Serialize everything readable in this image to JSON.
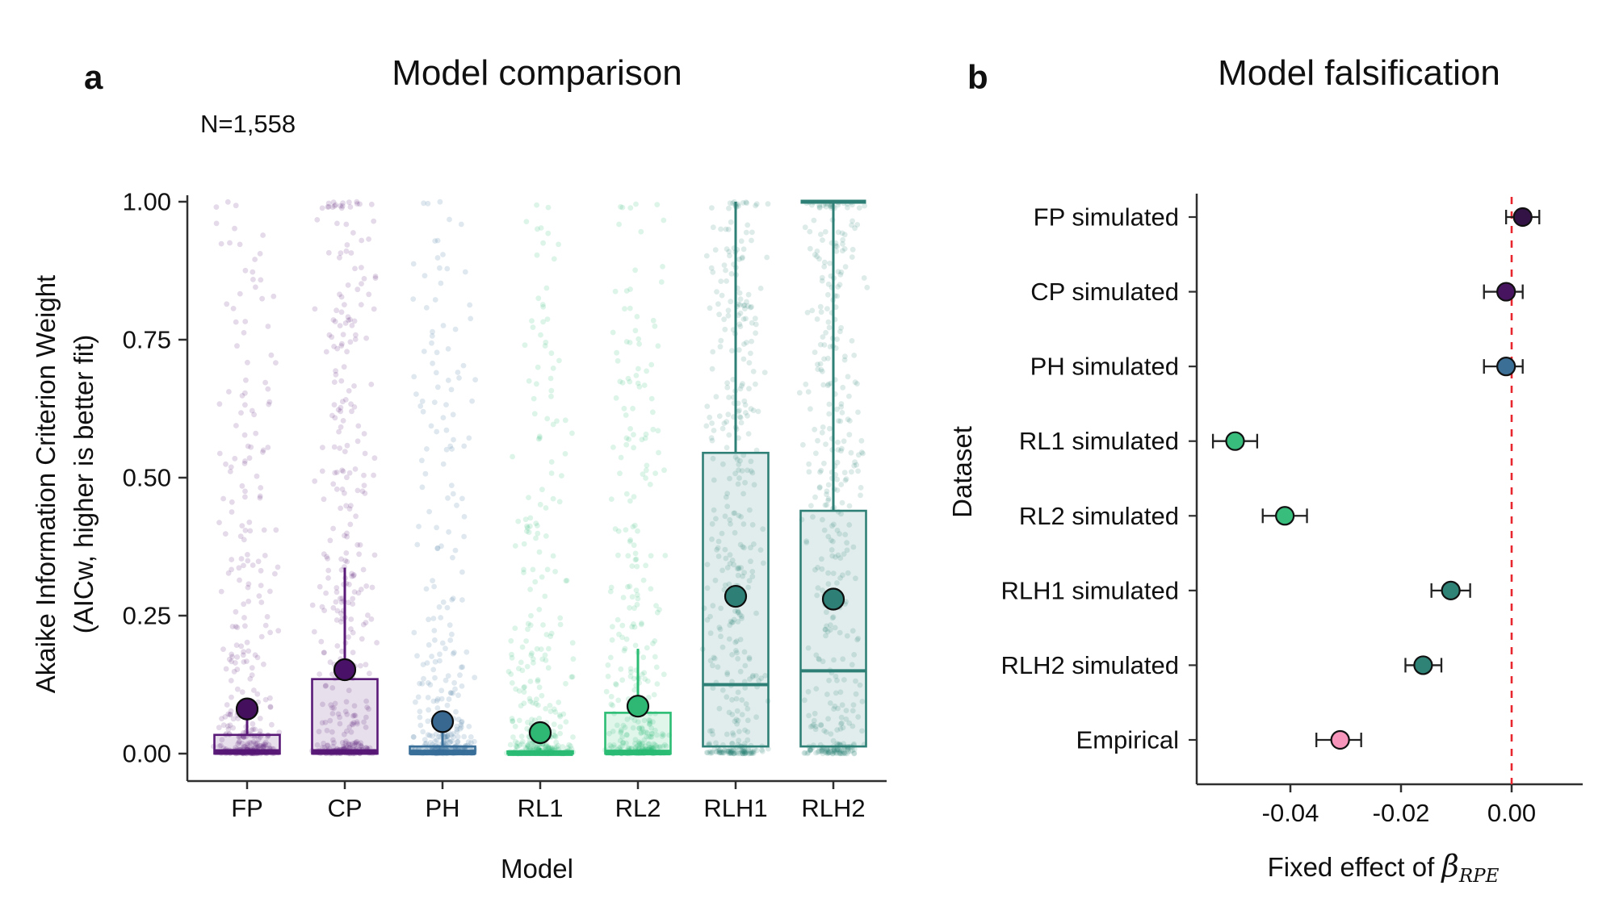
{
  "figure": {
    "background": "#ffffff",
    "panel_a": {
      "panel_label": "a",
      "title": "Model comparison",
      "annotation": "N=1,558",
      "x_axis_label": "Model",
      "y_axis_label_line1": "Akaike Information Criterion Weight",
      "y_axis_label_line2": "(AICw, higher is better fit)"
    },
    "panel_b": {
      "panel_label": "b",
      "title": "Model falsification",
      "y_axis_label": "Dataset",
      "x_label_prefix": "Fixed effect of ",
      "x_label_symbol": "β",
      "x_label_subscript": "RPE"
    }
  },
  "chart_data": [
    {
      "id": "model_comparison",
      "type": "boxplot_jitter",
      "title": "Model comparison",
      "annotation": "N=1,558",
      "xlabel": "Model",
      "ylabel": "Akaike Information Criterion Weight (AICw, higher is better fit)",
      "ylim": [
        0,
        1
      ],
      "grid": false,
      "y_ticks": [
        {
          "v": 0.0,
          "label": "0.00"
        },
        {
          "v": 0.25,
          "label": "0.25"
        },
        {
          "v": 0.5,
          "label": "0.50"
        },
        {
          "v": 0.75,
          "label": "0.75"
        },
        {
          "v": 1.0,
          "label": "1.00"
        }
      ],
      "categories": [
        "FP",
        "CP",
        "PH",
        "RL1",
        "RL2",
        "RLH1",
        "RLH2"
      ],
      "series": [
        {
          "model": "FP",
          "color": "#5a1a78",
          "dot_color": "#44105e",
          "q1": 0.0,
          "median": 0.003,
          "q3": 0.034,
          "whisker_high": 0.088,
          "mean": 0.081,
          "top_cap": false,
          "jitter": {
            "n": 360,
            "p_bottom": 0.42,
            "p_top": 0.008,
            "decay": 2.3
          }
        },
        {
          "model": "CP",
          "color": "#5a1a78",
          "dot_color": "#4a1168",
          "q1": 0.0,
          "median": 0.003,
          "q3": 0.135,
          "whisker_high": 0.337,
          "mean": 0.152,
          "top_cap": false,
          "jitter": {
            "n": 380,
            "p_bottom": 0.3,
            "p_top": 0.045,
            "decay": 1.5
          }
        },
        {
          "model": "PH",
          "color": "#3a6f99",
          "dot_color": "#38688f",
          "q1": 0.0,
          "median": 0.002,
          "q3": 0.013,
          "whisker_high": 0.04,
          "mean": 0.058,
          "top_cap": false,
          "jitter": {
            "n": 360,
            "p_bottom": 0.45,
            "p_top": 0.008,
            "decay": 2.2
          }
        },
        {
          "model": "RL1",
          "color": "#2cbd74",
          "dot_color": "#2eb873",
          "q1": 0.0,
          "median": 0.001,
          "q3": 0.004,
          "whisker_high": 0.01,
          "mean": 0.038,
          "top_cap": false,
          "jitter": {
            "n": 360,
            "p_bottom": 0.5,
            "p_top": 0.004,
            "decay": 2.4
          }
        },
        {
          "model": "RL2",
          "color": "#2cbd74",
          "dot_color": "#2eb873",
          "q1": 0.0,
          "median": 0.002,
          "q3": 0.074,
          "whisker_high": 0.19,
          "mean": 0.086,
          "top_cap": false,
          "jitter": {
            "n": 360,
            "p_bottom": 0.4,
            "p_top": 0.01,
            "decay": 1.9
          }
        },
        {
          "model": "RLH1",
          "color": "#2e8076",
          "dot_color": "#2e8076",
          "q1": 0.013,
          "median": 0.125,
          "q3": 0.545,
          "whisker_high": 1.0,
          "mean": 0.285,
          "top_cap": false,
          "jitter": {
            "n": 420,
            "p_bottom": 0.24,
            "p_top": 0.04,
            "decay": 1.05
          }
        },
        {
          "model": "RLH2",
          "color": "#2e8076",
          "dot_color": "#2e8076",
          "q1": 0.013,
          "median": 0.15,
          "q3": 0.44,
          "whisker_high": 1.0,
          "mean": 0.28,
          "top_cap": true,
          "jitter": {
            "n": 420,
            "p_bottom": 0.24,
            "p_top": 0.06,
            "decay": 1.05
          }
        }
      ]
    },
    {
      "id": "model_falsification",
      "type": "forest",
      "title": "Model falsification",
      "xlabel": "Fixed effect of β_RPE",
      "ylabel": "Dataset",
      "xlim": [
        -0.055,
        0.013
      ],
      "x_ticks": [
        {
          "v": -0.04,
          "label": "-0.04"
        },
        {
          "v": -0.02,
          "label": "-0.02"
        },
        {
          "v": 0.0,
          "label": "0.00"
        }
      ],
      "reference_line": {
        "x": 0,
        "color": "#e8262d",
        "style": "dashed"
      },
      "rows": [
        {
          "label": "FP simulated",
          "value": 0.002,
          "ci_low": -0.001,
          "ci_high": 0.005,
          "color": "#331245"
        },
        {
          "label": "CP simulated",
          "value": -0.001,
          "ci_low": -0.005,
          "ci_high": 0.002,
          "color": "#47145f"
        },
        {
          "label": "PH simulated",
          "value": -0.001,
          "ci_low": -0.005,
          "ci_high": 0.002,
          "color": "#3c6f96"
        },
        {
          "label": "RL1 simulated",
          "value": -0.05,
          "ci_low": -0.054,
          "ci_high": -0.046,
          "color": "#38bd7d"
        },
        {
          "label": "RL2 simulated",
          "value": -0.041,
          "ci_low": -0.045,
          "ci_high": -0.037,
          "color": "#38bd7d"
        },
        {
          "label": "RLH1 simulated",
          "value": -0.011,
          "ci_low": -0.0145,
          "ci_high": -0.0075,
          "color": "#2e8276"
        },
        {
          "label": "RLH2 simulated",
          "value": -0.016,
          "ci_low": -0.0192,
          "ci_high": -0.0127,
          "color": "#2e8276"
        },
        {
          "label": "Empirical",
          "value": -0.031,
          "ci_low": -0.0353,
          "ci_high": -0.0272,
          "color": "#f795ba"
        }
      ]
    }
  ]
}
